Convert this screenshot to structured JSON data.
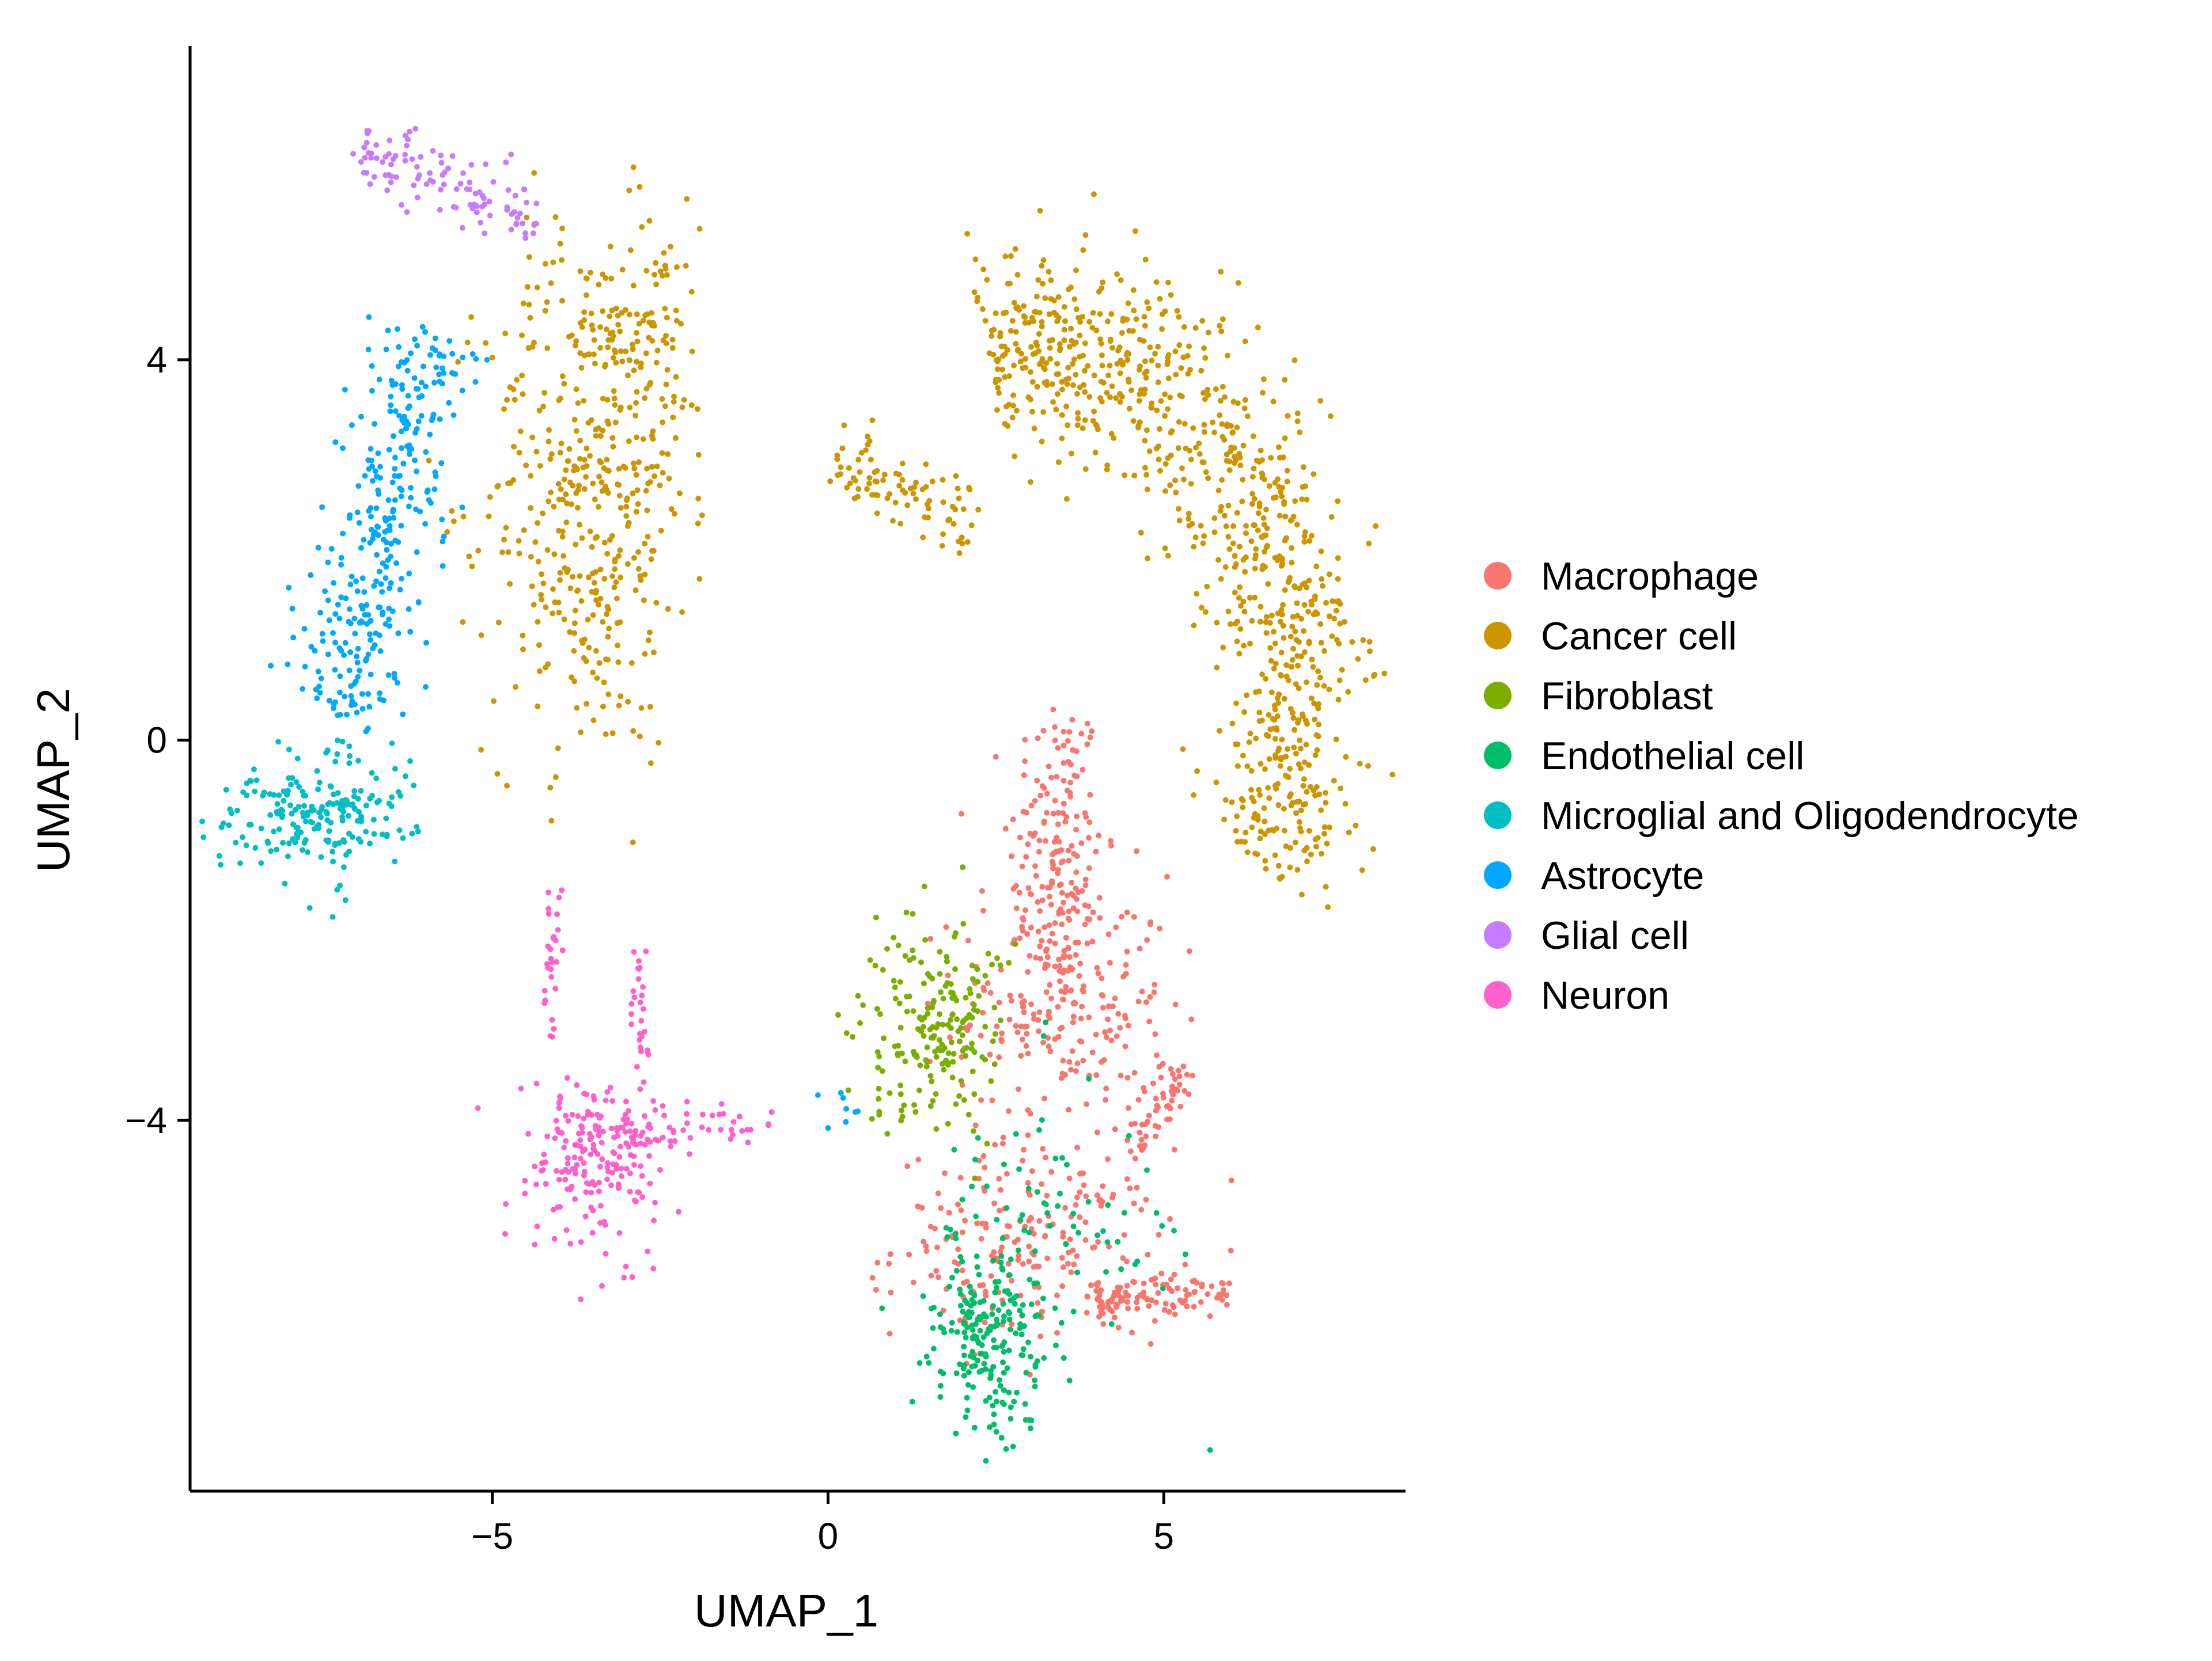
{
  "chart_data": {
    "type": "scatter",
    "title": "",
    "xlabel": "UMAP_1",
    "ylabel": "UMAP_2",
    "xlim": [
      -9.5,
      8.6
    ],
    "ylim": [
      -7.9,
      7.3
    ],
    "x_ticks": [
      -5,
      0,
      5
    ],
    "y_ticks": [
      -4,
      0,
      4
    ],
    "x_tick_labels": [
      "−5",
      "0",
      "5"
    ],
    "y_tick_labels": [
      "−4",
      "0",
      "4"
    ],
    "grid": false,
    "legend_position": "right",
    "series": [
      {
        "name": "Macrophage",
        "color": "#F8766D",
        "clusters": [
          {
            "type": "blob",
            "cx": 3.4,
            "cy": -1.2,
            "sx": 0.35,
            "sy": 0.9,
            "n": 170
          },
          {
            "type": "blob",
            "cx": 3.5,
            "cy": -2.8,
            "sx": 0.8,
            "sy": 0.7,
            "n": 230
          },
          {
            "type": "blob",
            "cx": 3.0,
            "cy": -5.3,
            "sx": 1.0,
            "sy": 0.5,
            "n": 210
          },
          {
            "type": "segment",
            "x1": 4.0,
            "y1": -5.9,
            "x2": 6.0,
            "y2": -5.8,
            "w": 0.12,
            "n": 110
          },
          {
            "type": "segment",
            "x1": 4.5,
            "y1": -4.4,
            "x2": 5.4,
            "y2": -3.4,
            "w": 0.12,
            "n": 50
          }
        ]
      },
      {
        "name": "Cancer cell",
        "color": "#CD9600",
        "clusters": [
          {
            "type": "blob",
            "cx": -3.6,
            "cy": 2.6,
            "sx": 0.75,
            "sy": 1.4,
            "n": 420
          },
          {
            "type": "blob",
            "cx": -2.6,
            "cy": 4.3,
            "sx": 0.35,
            "sy": 0.7,
            "n": 90
          },
          {
            "type": "arc",
            "cx": 3.3,
            "cy": 0.5,
            "r": 3.7,
            "a0": 105,
            "a1": -30,
            "w": 0.55,
            "n": 900
          },
          {
            "type": "segment",
            "x1": 0.1,
            "y1": 3.0,
            "x2": 2.2,
            "y2": 2.3,
            "w": 0.2,
            "n": 90
          }
        ]
      },
      {
        "name": "Fibroblast",
        "color": "#7CAE00",
        "clusters": [
          {
            "type": "blob",
            "cx": 1.6,
            "cy": -3.0,
            "sx": 0.5,
            "sy": 0.6,
            "n": 200
          }
        ]
      },
      {
        "name": "Endothelial cell",
        "color": "#00BE67",
        "clusters": [
          {
            "type": "blob",
            "cx": 2.4,
            "cy": -6.3,
            "sx": 0.45,
            "sy": 0.55,
            "n": 210
          },
          {
            "type": "blob",
            "cx": 3.3,
            "cy": -5.0,
            "sx": 1.0,
            "sy": 0.8,
            "n": 70
          }
        ]
      },
      {
        "name": "Microglial and Oligodendrocyte",
        "color": "#00BFC4",
        "clusters": [
          {
            "type": "blob",
            "cx": -7.6,
            "cy": -0.8,
            "sx": 0.7,
            "sy": 0.35,
            "n": 210
          }
        ]
      },
      {
        "name": "Astrocyte",
        "color": "#00A9FF",
        "clusters": [
          {
            "type": "segment",
            "x1": -7.3,
            "y1": 0.2,
            "x2": -5.9,
            "y2": 4.3,
            "w": 0.4,
            "n": 330
          },
          {
            "type": "blob",
            "cx": 0.3,
            "cy": -3.9,
            "sx": 0.15,
            "sy": 0.1,
            "n": 8
          }
        ]
      },
      {
        "name": "Glial cell",
        "color": "#C77CFF",
        "clusters": [
          {
            "type": "segment",
            "x1": -7.1,
            "y1": 6.3,
            "x2": -4.3,
            "y2": 5.4,
            "w": 0.2,
            "n": 110
          }
        ]
      },
      {
        "name": "Neuron",
        "color": "#FF61CC",
        "clusters": [
          {
            "type": "blob",
            "cx": -3.5,
            "cy": -4.4,
            "sx": 0.5,
            "sy": 0.5,
            "n": 190
          },
          {
            "type": "segment",
            "x1": -3.1,
            "y1": -4.2,
            "x2": -0.8,
            "y2": -4.0,
            "w": 0.08,
            "n": 55
          },
          {
            "type": "segment",
            "x1": -4.1,
            "y1": -3.2,
            "x2": -4.1,
            "y2": -1.5,
            "w": 0.07,
            "n": 28
          },
          {
            "type": "segment",
            "x1": -2.8,
            "y1": -3.6,
            "x2": -2.8,
            "y2": -2.2,
            "w": 0.07,
            "n": 28
          }
        ]
      }
    ]
  }
}
